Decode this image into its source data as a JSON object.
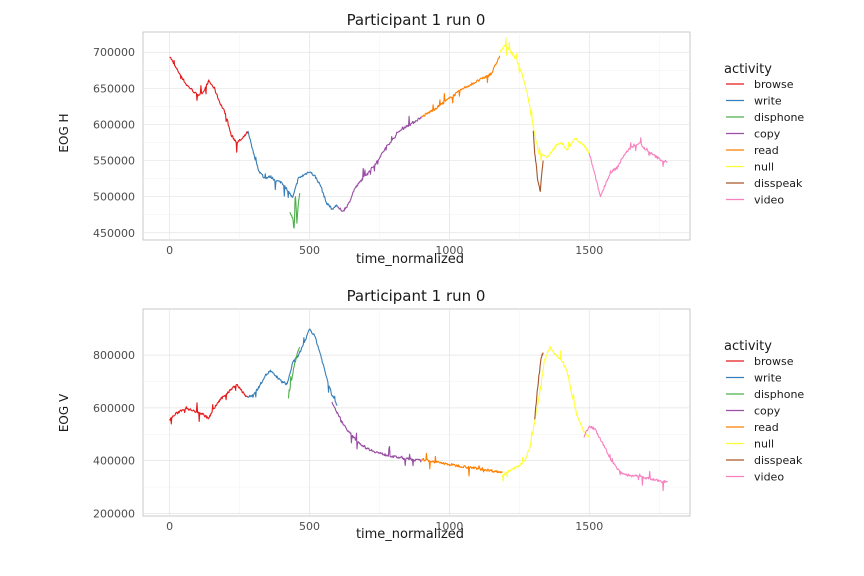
{
  "chart_data": [
    {
      "type": "line",
      "title": "Participant 1 run 0",
      "xlabel": "time_normalized",
      "ylabel": "EOG H",
      "xlim": [
        -95,
        1860
      ],
      "ylim": [
        440000,
        728000
      ],
      "xticks": [
        0,
        500,
        1000,
        1500
      ],
      "xtick_labels": [
        "0",
        "500",
        "1000",
        "1500"
      ],
      "yticks": [
        450000,
        500000,
        550000,
        600000,
        650000,
        700000
      ],
      "ytick_labels": [
        "450000",
        "500000",
        "550000",
        "600000",
        "650000",
        "700000"
      ],
      "grid": true,
      "legend": {
        "title": "activity",
        "position": "right",
        "entries": [
          "browse",
          "write",
          "disphone",
          "copy",
          "read",
          "null",
          "disspeak",
          "video"
        ]
      },
      "series": [
        {
          "name": "browse",
          "color": "#e41a1c",
          "x": [
            0,
            20,
            40,
            60,
            80,
            100,
            120,
            140,
            160,
            180,
            200,
            220,
            240,
            260,
            280
          ],
          "y": [
            695000,
            680000,
            668000,
            655000,
            648000,
            640000,
            645000,
            660000,
            650000,
            630000,
            615000,
            585000,
            575000,
            580000,
            590000
          ]
        },
        {
          "name": "write",
          "color": "#377eb8",
          "x": [
            280,
            300,
            320,
            340,
            360,
            380,
            400,
            420,
            440,
            460,
            480,
            500,
            520,
            540,
            560,
            580,
            600
          ],
          "y": [
            590000,
            560000,
            535000,
            525000,
            528000,
            522000,
            520000,
            510000,
            498000,
            525000,
            530000,
            535000,
            528000,
            515000,
            492000,
            483000,
            488000
          ]
        },
        {
          "name": "disphone",
          "color": "#4daf4a",
          "x": [
            430,
            440,
            445,
            450,
            455,
            460,
            465
          ],
          "y": [
            480000,
            470000,
            455000,
            500000,
            465000,
            490000,
            505000
          ]
        },
        {
          "name": "copy",
          "color": "#984ea3",
          "x": [
            600,
            620,
            640,
            660,
            680,
            700,
            720,
            740,
            760,
            780,
            800,
            820,
            840,
            860,
            880,
            900
          ],
          "y": [
            485000,
            480000,
            490000,
            510000,
            520000,
            530000,
            538000,
            548000,
            560000,
            572000,
            580000,
            590000,
            596000,
            600000,
            605000,
            610000
          ]
        },
        {
          "name": "read",
          "color": "#ff7f00",
          "x": [
            900,
            950,
            1000,
            1050,
            1100,
            1150,
            1180
          ],
          "y": [
            610000,
            622000,
            636000,
            650000,
            660000,
            670000,
            695000
          ]
        },
        {
          "name": "null",
          "color": "#ffff33",
          "x": [
            1180,
            1200,
            1220,
            1240,
            1260,
            1280,
            1300,
            1320,
            1350,
            1380,
            1400,
            1420,
            1450,
            1480,
            1500
          ],
          "y": [
            700000,
            710000,
            700000,
            690000,
            670000,
            640000,
            595000,
            560000,
            555000,
            570000,
            575000,
            565000,
            580000,
            572000,
            560000
          ]
        },
        {
          "name": "disspeak",
          "color": "#a65628",
          "x": [
            1300,
            1305,
            1310,
            1315,
            1320,
            1325,
            1330,
            1335
          ],
          "y": [
            590000,
            560000,
            545000,
            525000,
            515000,
            508000,
            530000,
            550000
          ]
        },
        {
          "name": "video",
          "color": "#f781bf",
          "x": [
            1500,
            1520,
            1540,
            1560,
            1580,
            1600,
            1620,
            1640,
            1660,
            1680,
            1700,
            1720,
            1740,
            1760,
            1780
          ],
          "y": [
            560000,
            530000,
            500000,
            520000,
            535000,
            540000,
            555000,
            565000,
            570000,
            575000,
            565000,
            560000,
            555000,
            550000,
            548000
          ]
        }
      ]
    },
    {
      "type": "line",
      "title": "Participant 1 run 0",
      "xlabel": "time_normalized",
      "ylabel": "EOG V",
      "xlim": [
        -95,
        1860
      ],
      "ylim": [
        190000,
        975000
      ],
      "xticks": [
        0,
        500,
        1000,
        1500
      ],
      "xtick_labels": [
        "0",
        "500",
        "1000",
        "1500"
      ],
      "yticks": [
        200000,
        400000,
        600000,
        800000
      ],
      "ytick_labels": [
        "200000",
        "400000",
        "600000",
        "800000"
      ],
      "grid": true,
      "legend": {
        "title": "activity",
        "position": "right",
        "entries": [
          "browse",
          "write",
          "disphone",
          "copy",
          "read",
          "null",
          "disspeak",
          "video"
        ]
      },
      "series": [
        {
          "name": "browse",
          "color": "#e41a1c",
          "x": [
            0,
            20,
            40,
            60,
            80,
            100,
            120,
            140,
            160,
            180,
            200,
            220,
            240,
            260,
            280
          ],
          "y": [
            555000,
            575000,
            590000,
            600000,
            590000,
            585000,
            575000,
            560000,
            600000,
            630000,
            650000,
            670000,
            690000,
            660000,
            640000
          ]
        },
        {
          "name": "write",
          "color": "#377eb8",
          "x": [
            280,
            300,
            320,
            340,
            360,
            380,
            400,
            420,
            440,
            460,
            480,
            500,
            520,
            540,
            560,
            580,
            600
          ],
          "y": [
            640000,
            650000,
            680000,
            720000,
            740000,
            720000,
            700000,
            690000,
            770000,
            800000,
            840000,
            900000,
            870000,
            800000,
            720000,
            650000,
            610000
          ]
        },
        {
          "name": "disphone",
          "color": "#4daf4a",
          "x": [
            425,
            435,
            445,
            455,
            465
          ],
          "y": [
            640000,
            700000,
            760000,
            800000,
            830000
          ]
        },
        {
          "name": "copy",
          "color": "#984ea3",
          "x": [
            580,
            600,
            620,
            640,
            660,
            680,
            700,
            720,
            740,
            760,
            780,
            800,
            820,
            840,
            860,
            880,
            900
          ],
          "y": [
            620000,
            580000,
            540000,
            510000,
            485000,
            465000,
            450000,
            440000,
            432000,
            425000,
            420000,
            415000,
            412000,
            408000,
            405000,
            402000,
            400000
          ]
        },
        {
          "name": "read",
          "color": "#ff7f00",
          "x": [
            900,
            950,
            1000,
            1050,
            1100,
            1150,
            1190
          ],
          "y": [
            405000,
            395000,
            385000,
            378000,
            370000,
            362000,
            355000
          ]
        },
        {
          "name": "null",
          "color": "#ffff33",
          "x": [
            1190,
            1210,
            1230,
            1250,
            1270,
            1290,
            1300,
            1320,
            1340,
            1360,
            1380,
            1400,
            1420,
            1440,
            1460,
            1480,
            1500
          ],
          "y": [
            350000,
            360000,
            370000,
            380000,
            400000,
            460000,
            520000,
            640000,
            780000,
            830000,
            800000,
            780000,
            740000,
            640000,
            560000,
            510000,
            490000
          ]
        },
        {
          "name": "disspeak",
          "color": "#a65628",
          "x": [
            1305,
            1312,
            1320,
            1328,
            1335
          ],
          "y": [
            560000,
            640000,
            720000,
            790000,
            810000
          ]
        },
        {
          "name": "video",
          "color": "#f781bf",
          "x": [
            1480,
            1500,
            1520,
            1540,
            1560,
            1580,
            1600,
            1620,
            1640,
            1660,
            1680,
            1700,
            1720,
            1740,
            1760,
            1780
          ],
          "y": [
            490000,
            530000,
            520000,
            480000,
            440000,
            400000,
            370000,
            350000,
            345000,
            340000,
            345000,
            335000,
            330000,
            325000,
            322000,
            320000
          ]
        }
      ]
    }
  ]
}
